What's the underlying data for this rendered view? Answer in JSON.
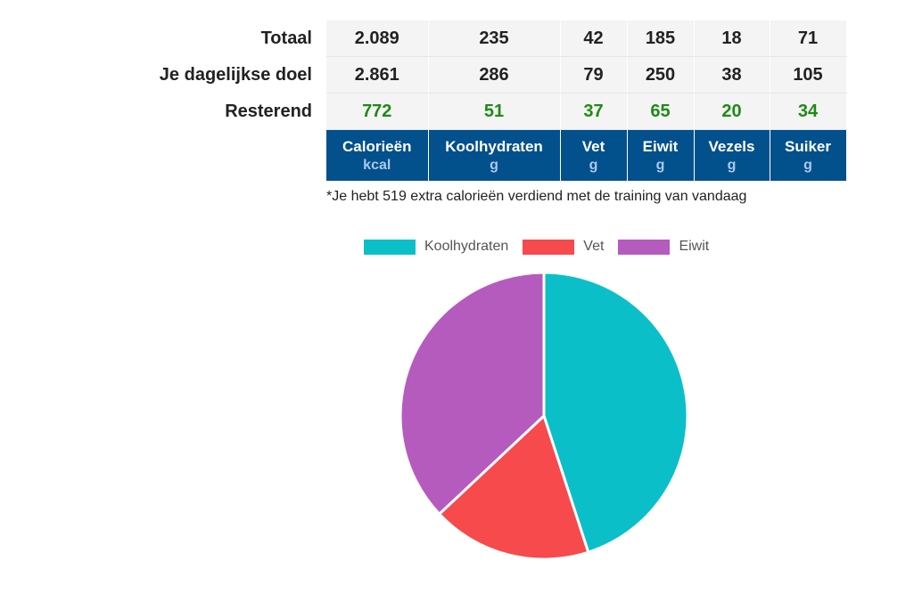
{
  "table": {
    "rows": [
      {
        "label": "Totaal",
        "values": [
          "2.089",
          "235",
          "42",
          "185",
          "18",
          "71"
        ]
      },
      {
        "label": "Je dagelijkse doel",
        "values": [
          "2.861",
          "286",
          "79",
          "250",
          "38",
          "105"
        ]
      },
      {
        "label": "Resterend",
        "values": [
          "772",
          "51",
          "37",
          "65",
          "20",
          "34"
        ]
      }
    ],
    "columns": [
      {
        "name": "Calorieën",
        "unit": "kcal"
      },
      {
        "name": "Koolhydraten",
        "unit": "g"
      },
      {
        "name": "Vet",
        "unit": "g"
      },
      {
        "name": "Eiwit",
        "unit": "g"
      },
      {
        "name": "Vezels",
        "unit": "g"
      },
      {
        "name": "Suiker",
        "unit": "g"
      }
    ]
  },
  "note": "*Je hebt 519 extra calorieën verdiend met de training van vandaag",
  "colors": {
    "header_bg": "#02508c",
    "remaining_text": "#1f8a18"
  },
  "chart_data": {
    "type": "pie",
    "categories": [
      "Koolhydraten",
      "Vet",
      "Eiwit"
    ],
    "values": [
      45,
      18,
      37
    ],
    "colors": [
      "#0bbfc8",
      "#f64a4d",
      "#b65bbe"
    ],
    "legend": "top"
  }
}
